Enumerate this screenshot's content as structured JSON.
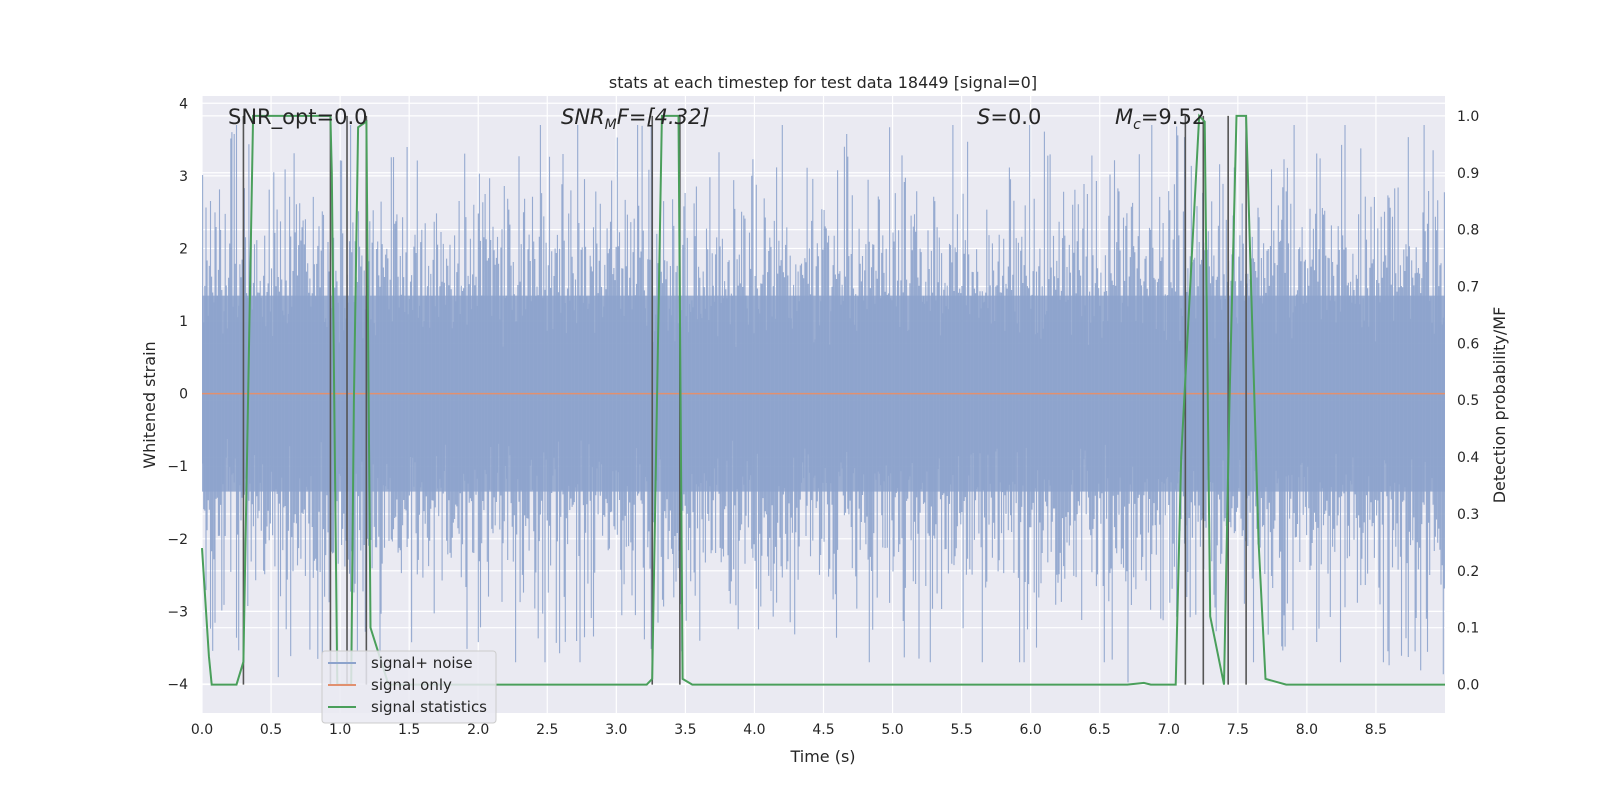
{
  "chart_data": {
    "type": "line",
    "title": "stats at each timestep for test data 18449 [signal=0]",
    "xlabel": "Time (s)",
    "ylabel": "Whitened strain",
    "y2label": "Detection probability/MF",
    "xlim": [
      0.0,
      9.0
    ],
    "ylim": [
      -4.4,
      4.1
    ],
    "y2lim": [
      -0.05,
      1.035
    ],
    "xticks": [
      "0.0",
      "0.5",
      "1.0",
      "1.5",
      "2.0",
      "2.5",
      "3.0",
      "3.5",
      "4.0",
      "4.5",
      "5.0",
      "5.5",
      "6.0",
      "6.5",
      "7.0",
      "7.5",
      "8.0",
      "8.5"
    ],
    "xtick_values": [
      0,
      0.5,
      1,
      1.5,
      2,
      2.5,
      3,
      3.5,
      4,
      4.5,
      5,
      5.5,
      6,
      6.5,
      7,
      7.5,
      8,
      8.5
    ],
    "yticks": [
      "4",
      "3",
      "2",
      "1",
      "0",
      "−1",
      "−2",
      "−3",
      "−4"
    ],
    "ytick_values": [
      4,
      3,
      2,
      1,
      0,
      -1,
      -2,
      -3,
      -4
    ],
    "y2ticks": [
      "1.0",
      "0.9",
      "0.8",
      "0.7",
      "0.6",
      "0.5",
      "0.4",
      "0.3",
      "0.2",
      "0.1",
      "0.0"
    ],
    "y2tick_values": [
      1,
      0.9,
      0.8,
      0.7,
      0.6,
      0.5,
      0.4,
      0.3,
      0.2,
      0.1,
      0
    ],
    "annotations": {
      "snr_opt": "SNR_opt=0.0",
      "snr_mf_label": "SNR",
      "snr_mf_sub": "M",
      "snr_mf_tail": "F=[4.32]",
      "s_label": "S",
      "s_value": "=0.0",
      "mc_label": "M",
      "mc_sub": "c",
      "mc_value": "=9.52"
    },
    "legend": {
      "position": "lower-left",
      "items": [
        "signal+ noise",
        "signal only",
        "signal statistics"
      ]
    },
    "colors": {
      "noise": "#8da3cc",
      "signal_only": "#e1906f",
      "statistics": "#4a9f5b",
      "vlines": "#555555",
      "plot_bg": "#eaeaf2",
      "grid": "#ffffff"
    },
    "series": [
      {
        "name": "signal+ noise",
        "description": "whitened strain noise, roughly Gaussian with amplitude up to about 3.7, dense sampling",
        "amplitude_peak": 3.7,
        "noise_sigma": 1.0
      },
      {
        "name": "signal only",
        "x": [
          0.0,
          9.0
        ],
        "y": [
          0.0,
          0.0
        ]
      },
      {
        "name": "signal statistics",
        "axis": "right",
        "x": [
          0.0,
          0.05,
          0.07,
          0.25,
          0.3,
          0.37,
          0.93,
          0.94,
          0.98,
          1.0,
          1.08,
          1.1,
          1.13,
          1.19,
          1.22,
          1.35,
          3.22,
          3.26,
          3.33,
          3.45,
          3.48,
          3.55,
          6.7,
          6.82,
          6.87,
          7.05,
          7.09,
          7.22,
          7.26,
          7.3,
          7.4,
          7.44,
          7.49,
          7.56,
          7.65,
          7.7,
          7.85,
          9.0
        ],
        "y": [
          0.24,
          0.05,
          0.0,
          0.0,
          0.04,
          1.0,
          1.0,
          0.9,
          0.0,
          0.0,
          0.0,
          0.5,
          0.98,
          0.99,
          0.1,
          0.0,
          0.0,
          0.01,
          1.0,
          1.0,
          0.01,
          0.0,
          0.0,
          0.003,
          0.0,
          0.0,
          0.4,
          1.0,
          0.99,
          0.12,
          0.0,
          0.5,
          1.0,
          1.0,
          0.25,
          0.01,
          0.0,
          0.0
        ]
      }
    ],
    "vlines_x": [
      0.3,
      0.93,
      1.05,
      1.19,
      3.26,
      3.46,
      7.12,
      7.25,
      7.43,
      7.56
    ]
  }
}
